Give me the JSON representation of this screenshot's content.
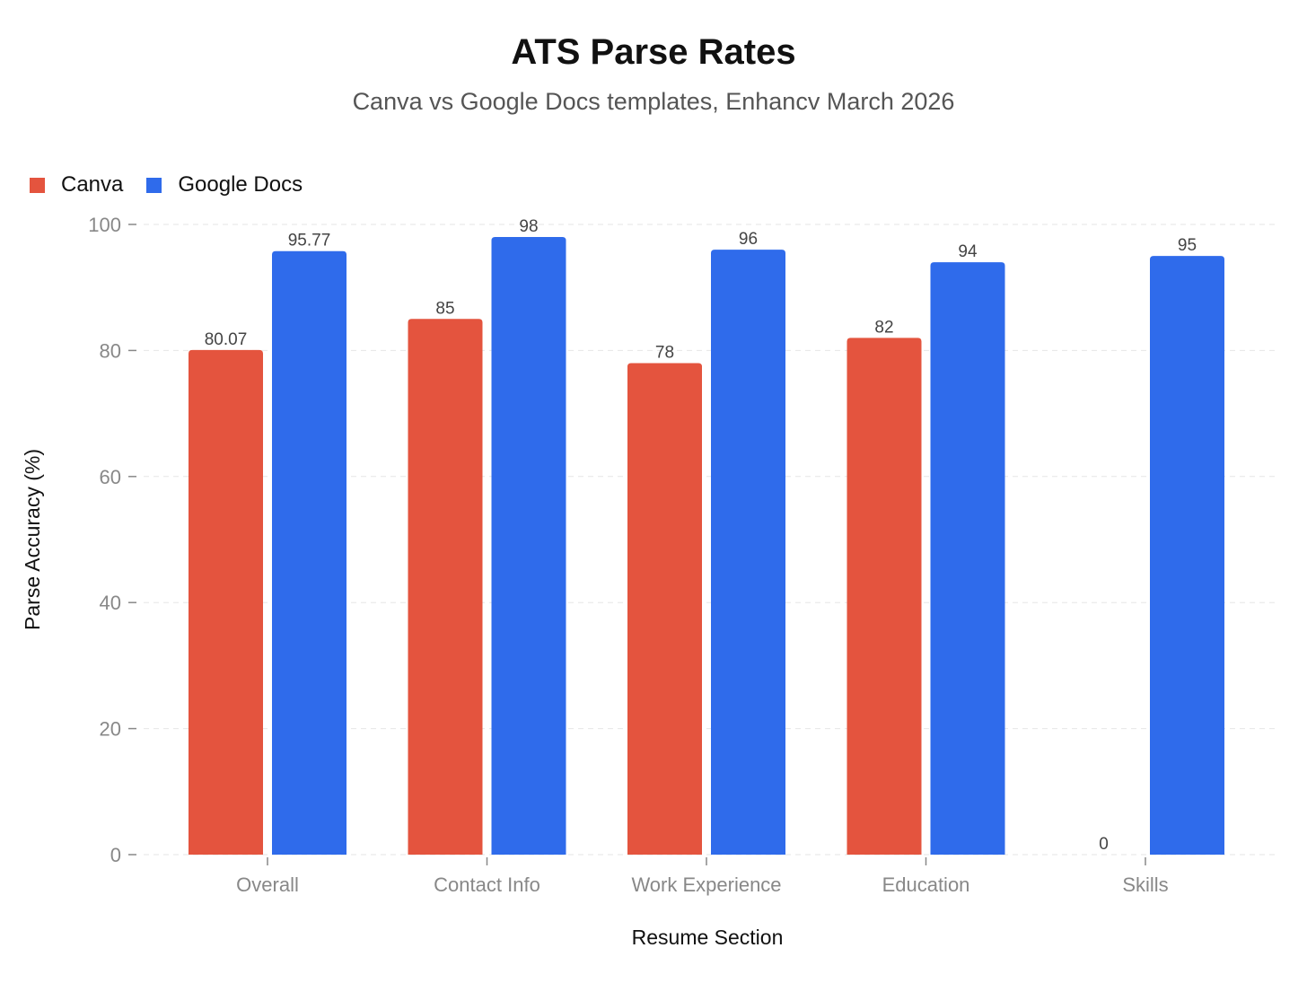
{
  "chart_data": {
    "type": "bar",
    "title": "ATS Parse Rates",
    "subtitle": "Canva vs Google Docs templates, Enhancv March 2026",
    "xlabel": "Resume Section",
    "ylabel": "Parse Accuracy (%)",
    "ylim": [
      0,
      100
    ],
    "yticks": [
      0,
      20,
      40,
      60,
      80,
      100
    ],
    "grid": true,
    "legend_position": "top-left",
    "categories": [
      "Overall",
      "Contact Info",
      "Work Experience",
      "Education",
      "Skills"
    ],
    "series": [
      {
        "name": "Canva",
        "color": "#E4543E",
        "values": [
          80.07,
          85,
          78,
          82,
          0
        ],
        "labels": [
          "80.07",
          "85",
          "78",
          "82",
          "0"
        ]
      },
      {
        "name": "Google Docs",
        "color": "#2F6BEB",
        "values": [
          95.77,
          98,
          96,
          94,
          95
        ],
        "labels": [
          "95.77",
          "98",
          "96",
          "94",
          "95"
        ]
      }
    ]
  }
}
